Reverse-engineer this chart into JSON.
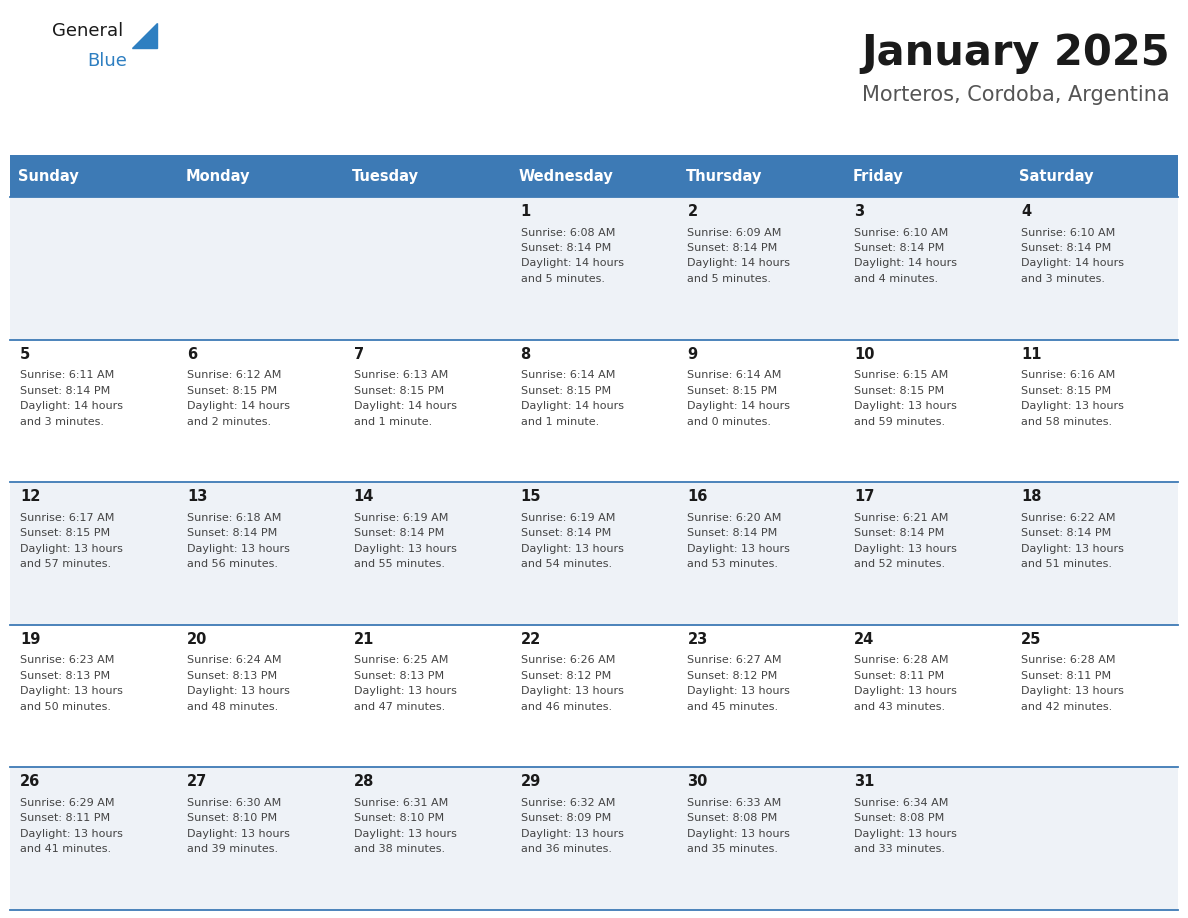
{
  "title": "January 2025",
  "subtitle": "Morteros, Cordoba, Argentina",
  "days_of_week": [
    "Sunday",
    "Monday",
    "Tuesday",
    "Wednesday",
    "Thursday",
    "Friday",
    "Saturday"
  ],
  "header_bg": "#3d7ab5",
  "header_text_color": "#ffffff",
  "row_bg_odd": "#eef2f7",
  "row_bg_even": "#ffffff",
  "divider_color": "#3d7ab5",
  "text_color": "#444444",
  "day_num_color": "#222222",
  "logo_general_color": "#222222",
  "logo_blue_color": "#2e7fc1",
  "calendar_data": [
    {
      "day": 1,
      "col": 3,
      "row": 0,
      "sunrise": "6:08 AM",
      "sunset": "8:14 PM",
      "daylight": "14 hours and 5 minutes."
    },
    {
      "day": 2,
      "col": 4,
      "row": 0,
      "sunrise": "6:09 AM",
      "sunset": "8:14 PM",
      "daylight": "14 hours and 5 minutes."
    },
    {
      "day": 3,
      "col": 5,
      "row": 0,
      "sunrise": "6:10 AM",
      "sunset": "8:14 PM",
      "daylight": "14 hours and 4 minutes."
    },
    {
      "day": 4,
      "col": 6,
      "row": 0,
      "sunrise": "6:10 AM",
      "sunset": "8:14 PM",
      "daylight": "14 hours and 3 minutes."
    },
    {
      "day": 5,
      "col": 0,
      "row": 1,
      "sunrise": "6:11 AM",
      "sunset": "8:14 PM",
      "daylight": "14 hours and 3 minutes."
    },
    {
      "day": 6,
      "col": 1,
      "row": 1,
      "sunrise": "6:12 AM",
      "sunset": "8:15 PM",
      "daylight": "14 hours and 2 minutes."
    },
    {
      "day": 7,
      "col": 2,
      "row": 1,
      "sunrise": "6:13 AM",
      "sunset": "8:15 PM",
      "daylight": "14 hours and 1 minute."
    },
    {
      "day": 8,
      "col": 3,
      "row": 1,
      "sunrise": "6:14 AM",
      "sunset": "8:15 PM",
      "daylight": "14 hours and 1 minute."
    },
    {
      "day": 9,
      "col": 4,
      "row": 1,
      "sunrise": "6:14 AM",
      "sunset": "8:15 PM",
      "daylight": "14 hours and 0 minutes."
    },
    {
      "day": 10,
      "col": 5,
      "row": 1,
      "sunrise": "6:15 AM",
      "sunset": "8:15 PM",
      "daylight": "13 hours and 59 minutes."
    },
    {
      "day": 11,
      "col": 6,
      "row": 1,
      "sunrise": "6:16 AM",
      "sunset": "8:15 PM",
      "daylight": "13 hours and 58 minutes."
    },
    {
      "day": 12,
      "col": 0,
      "row": 2,
      "sunrise": "6:17 AM",
      "sunset": "8:15 PM",
      "daylight": "13 hours and 57 minutes."
    },
    {
      "day": 13,
      "col": 1,
      "row": 2,
      "sunrise": "6:18 AM",
      "sunset": "8:14 PM",
      "daylight": "13 hours and 56 minutes."
    },
    {
      "day": 14,
      "col": 2,
      "row": 2,
      "sunrise": "6:19 AM",
      "sunset": "8:14 PM",
      "daylight": "13 hours and 55 minutes."
    },
    {
      "day": 15,
      "col": 3,
      "row": 2,
      "sunrise": "6:19 AM",
      "sunset": "8:14 PM",
      "daylight": "13 hours and 54 minutes."
    },
    {
      "day": 16,
      "col": 4,
      "row": 2,
      "sunrise": "6:20 AM",
      "sunset": "8:14 PM",
      "daylight": "13 hours and 53 minutes."
    },
    {
      "day": 17,
      "col": 5,
      "row": 2,
      "sunrise": "6:21 AM",
      "sunset": "8:14 PM",
      "daylight": "13 hours and 52 minutes."
    },
    {
      "day": 18,
      "col": 6,
      "row": 2,
      "sunrise": "6:22 AM",
      "sunset": "8:14 PM",
      "daylight": "13 hours and 51 minutes."
    },
    {
      "day": 19,
      "col": 0,
      "row": 3,
      "sunrise": "6:23 AM",
      "sunset": "8:13 PM",
      "daylight": "13 hours and 50 minutes."
    },
    {
      "day": 20,
      "col": 1,
      "row": 3,
      "sunrise": "6:24 AM",
      "sunset": "8:13 PM",
      "daylight": "13 hours and 48 minutes."
    },
    {
      "day": 21,
      "col": 2,
      "row": 3,
      "sunrise": "6:25 AM",
      "sunset": "8:13 PM",
      "daylight": "13 hours and 47 minutes."
    },
    {
      "day": 22,
      "col": 3,
      "row": 3,
      "sunrise": "6:26 AM",
      "sunset": "8:12 PM",
      "daylight": "13 hours and 46 minutes."
    },
    {
      "day": 23,
      "col": 4,
      "row": 3,
      "sunrise": "6:27 AM",
      "sunset": "8:12 PM",
      "daylight": "13 hours and 45 minutes."
    },
    {
      "day": 24,
      "col": 5,
      "row": 3,
      "sunrise": "6:28 AM",
      "sunset": "8:11 PM",
      "daylight": "13 hours and 43 minutes."
    },
    {
      "day": 25,
      "col": 6,
      "row": 3,
      "sunrise": "6:28 AM",
      "sunset": "8:11 PM",
      "daylight": "13 hours and 42 minutes."
    },
    {
      "day": 26,
      "col": 0,
      "row": 4,
      "sunrise": "6:29 AM",
      "sunset": "8:11 PM",
      "daylight": "13 hours and 41 minutes."
    },
    {
      "day": 27,
      "col": 1,
      "row": 4,
      "sunrise": "6:30 AM",
      "sunset": "8:10 PM",
      "daylight": "13 hours and 39 minutes."
    },
    {
      "day": 28,
      "col": 2,
      "row": 4,
      "sunrise": "6:31 AM",
      "sunset": "8:10 PM",
      "daylight": "13 hours and 38 minutes."
    },
    {
      "day": 29,
      "col": 3,
      "row": 4,
      "sunrise": "6:32 AM",
      "sunset": "8:09 PM",
      "daylight": "13 hours and 36 minutes."
    },
    {
      "day": 30,
      "col": 4,
      "row": 4,
      "sunrise": "6:33 AM",
      "sunset": "8:08 PM",
      "daylight": "13 hours and 35 minutes."
    },
    {
      "day": 31,
      "col": 5,
      "row": 4,
      "sunrise": "6:34 AM",
      "sunset": "8:08 PM",
      "daylight": "13 hours and 33 minutes."
    }
  ]
}
